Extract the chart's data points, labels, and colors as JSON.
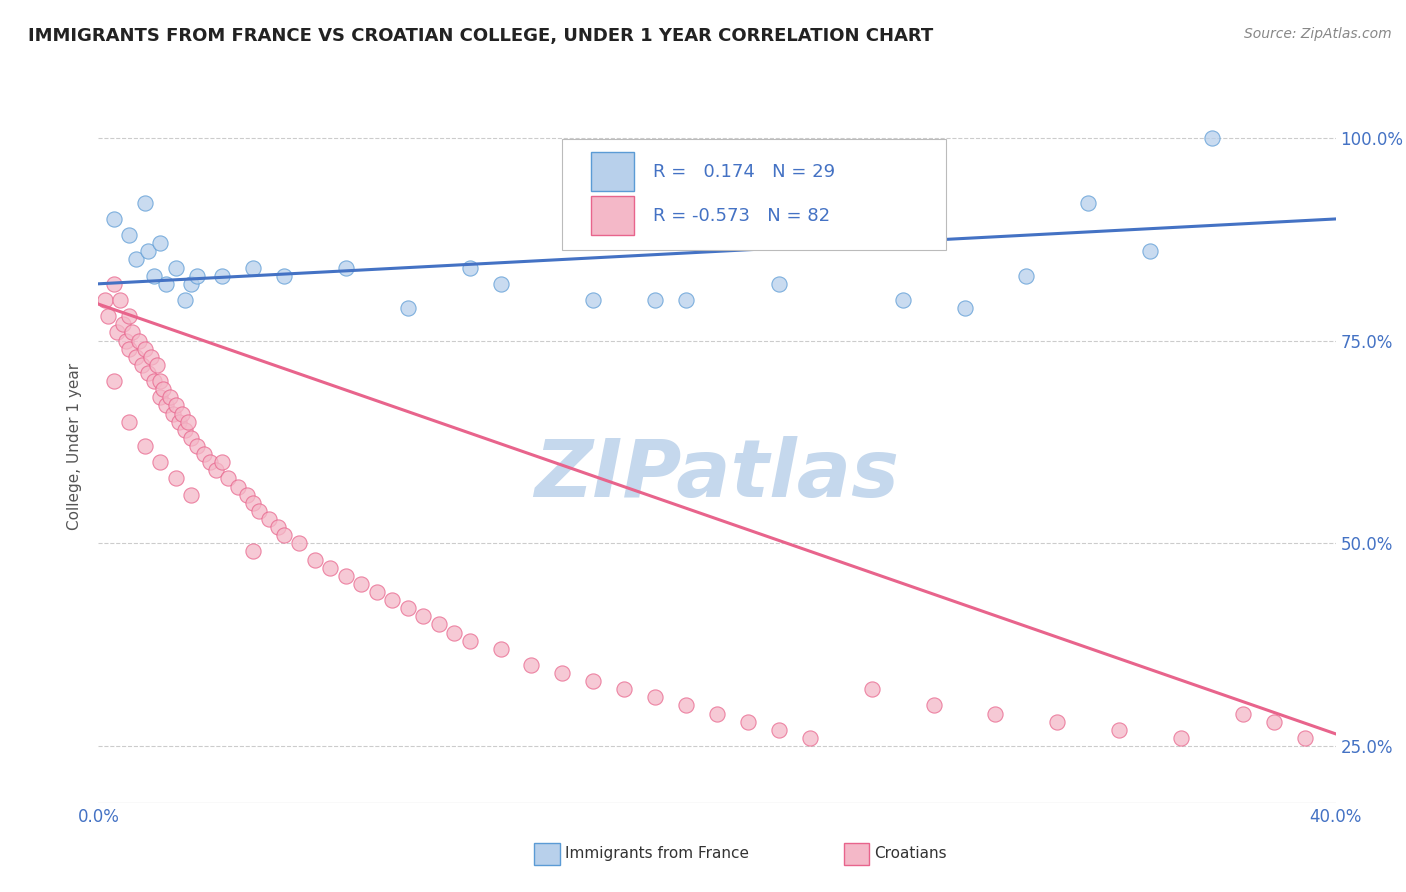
{
  "title": "IMMIGRANTS FROM FRANCE VS CROATIAN COLLEGE, UNDER 1 YEAR CORRELATION CHART",
  "source": "Source: ZipAtlas.com",
  "ylabel": "College, Under 1 year",
  "xlim": [
    0.0,
    0.4
  ],
  "ylim": [
    0.18,
    1.06
  ],
  "xticks": [
    0.0,
    0.05,
    0.1,
    0.15,
    0.2,
    0.25,
    0.3,
    0.35,
    0.4
  ],
  "yticks": [
    0.25,
    0.5,
    0.75,
    1.0
  ],
  "yticklabels": [
    "25.0%",
    "50.0%",
    "75.0%",
    "100.0%"
  ],
  "blue_fill": "#b8d0eb",
  "blue_edge": "#5b9bd5",
  "pink_fill": "#f4b8c8",
  "pink_edge": "#e8648c",
  "blue_line_color": "#4472c4",
  "pink_line_color": "#e8648c",
  "legend_R1": "0.174",
  "legend_N1": "29",
  "legend_R2": "-0.573",
  "legend_N2": "82",
  "watermark": "ZIPatlas",
  "watermark_color": "#c5d8ed",
  "blue_scatter_x": [
    0.005,
    0.01,
    0.012,
    0.015,
    0.016,
    0.018,
    0.02,
    0.022,
    0.025,
    0.028,
    0.03,
    0.032,
    0.04,
    0.05,
    0.06,
    0.08,
    0.1,
    0.12,
    0.13,
    0.16,
    0.18,
    0.19,
    0.22,
    0.26,
    0.28,
    0.3,
    0.32,
    0.34,
    0.36
  ],
  "blue_scatter_y": [
    0.9,
    0.88,
    0.85,
    0.92,
    0.86,
    0.83,
    0.87,
    0.82,
    0.84,
    0.8,
    0.82,
    0.83,
    0.83,
    0.84,
    0.83,
    0.84,
    0.79,
    0.84,
    0.82,
    0.8,
    0.8,
    0.8,
    0.82,
    0.8,
    0.79,
    0.83,
    0.92,
    0.86,
    1.0
  ],
  "pink_scatter_x": [
    0.002,
    0.003,
    0.005,
    0.006,
    0.007,
    0.008,
    0.009,
    0.01,
    0.01,
    0.011,
    0.012,
    0.013,
    0.014,
    0.015,
    0.016,
    0.017,
    0.018,
    0.019,
    0.02,
    0.02,
    0.021,
    0.022,
    0.023,
    0.024,
    0.025,
    0.026,
    0.027,
    0.028,
    0.029,
    0.03,
    0.032,
    0.034,
    0.036,
    0.038,
    0.04,
    0.042,
    0.045,
    0.048,
    0.05,
    0.052,
    0.055,
    0.058,
    0.06,
    0.065,
    0.07,
    0.075,
    0.08,
    0.085,
    0.09,
    0.095,
    0.1,
    0.105,
    0.11,
    0.115,
    0.12,
    0.13,
    0.14,
    0.15,
    0.16,
    0.17,
    0.18,
    0.19,
    0.2,
    0.21,
    0.22,
    0.23,
    0.25,
    0.27,
    0.29,
    0.31,
    0.33,
    0.35,
    0.37,
    0.38,
    0.39,
    0.005,
    0.01,
    0.015,
    0.02,
    0.025,
    0.03,
    0.05
  ],
  "pink_scatter_y": [
    0.8,
    0.78,
    0.82,
    0.76,
    0.8,
    0.77,
    0.75,
    0.78,
    0.74,
    0.76,
    0.73,
    0.75,
    0.72,
    0.74,
    0.71,
    0.73,
    0.7,
    0.72,
    0.68,
    0.7,
    0.69,
    0.67,
    0.68,
    0.66,
    0.67,
    0.65,
    0.66,
    0.64,
    0.65,
    0.63,
    0.62,
    0.61,
    0.6,
    0.59,
    0.6,
    0.58,
    0.57,
    0.56,
    0.55,
    0.54,
    0.53,
    0.52,
    0.51,
    0.5,
    0.48,
    0.47,
    0.46,
    0.45,
    0.44,
    0.43,
    0.42,
    0.41,
    0.4,
    0.39,
    0.38,
    0.37,
    0.35,
    0.34,
    0.33,
    0.32,
    0.31,
    0.3,
    0.29,
    0.28,
    0.27,
    0.26,
    0.32,
    0.3,
    0.29,
    0.28,
    0.27,
    0.26,
    0.29,
    0.28,
    0.26,
    0.7,
    0.65,
    0.62,
    0.6,
    0.58,
    0.56,
    0.49
  ],
  "blue_line_x0": 0.0,
  "blue_line_y0": 0.82,
  "blue_line_x1": 0.4,
  "blue_line_y1": 0.9,
  "pink_line_x0": 0.0,
  "pink_line_y0": 0.795,
  "pink_line_x1": 0.4,
  "pink_line_y1": 0.265
}
